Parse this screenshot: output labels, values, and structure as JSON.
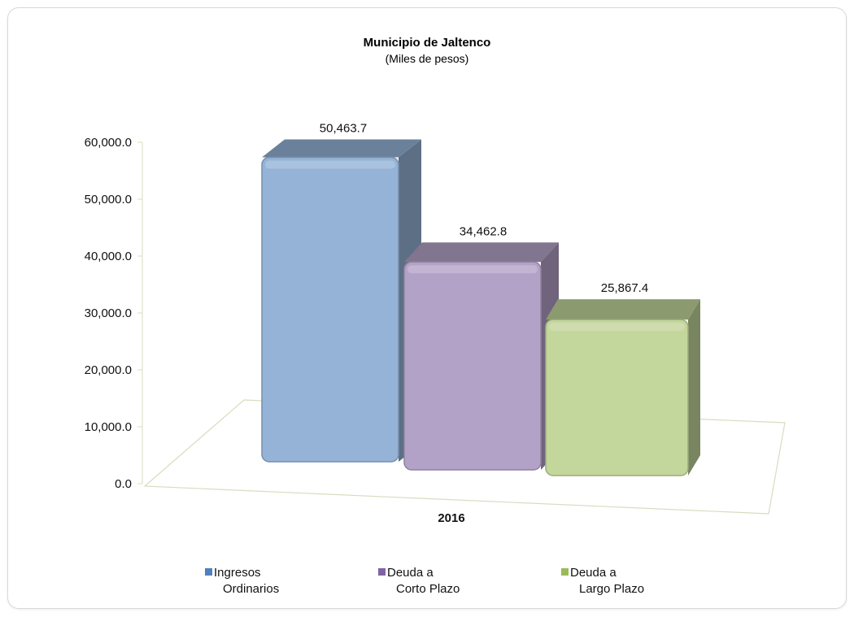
{
  "chart_data": {
    "type": "bar",
    "title": "Municipio de Jaltenco",
    "subtitle": "(Miles de pesos)",
    "categories": [
      "2016"
    ],
    "series": [
      {
        "name": "Ingresos Ordinarios",
        "legend_lines": [
          "Ingresos",
          "Ordinarios"
        ],
        "values": [
          50463.7
        ],
        "label": "50,463.7",
        "color": "#95b3d7"
      },
      {
        "name": "Deuda a Corto Plazo",
        "legend_lines": [
          "Deuda a",
          "Corto Plazo"
        ],
        "values": [
          34462.8
        ],
        "label": "34,462.8",
        "color": "#b3a2c7"
      },
      {
        "name": "Deuda a Largo Plazo",
        "legend_lines": [
          "Deuda a",
          "Largo Plazo"
        ],
        "values": [
          25867.4
        ],
        "label": "25,867.4",
        "color": "#c3d69b"
      }
    ],
    "ylim": [
      0,
      60000
    ],
    "yticks": [
      "0.0",
      "10,000.0",
      "20,000.0",
      "30,000.0",
      "40,000.0",
      "50,000.0",
      "60,000.0"
    ],
    "grid": false,
    "legend": "bottom",
    "style": "3d-column"
  }
}
